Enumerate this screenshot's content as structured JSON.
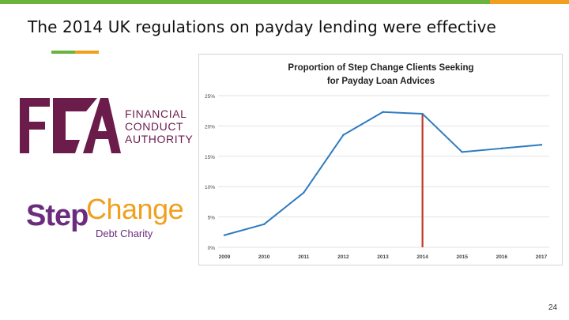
{
  "colors": {
    "accent_green": "#6bb33f",
    "accent_orange": "#f0a01e",
    "fca_purple": "#6b1c4b",
    "step_purple": "#6b2c7e",
    "step_orange": "#f0a01e",
    "line_blue": "#2e7bbf",
    "marker_red": "#c0392b"
  },
  "slide": {
    "title": "The 2014 UK regulations on payday lending were effective",
    "page_number": "24"
  },
  "logos": {
    "fca": {
      "mark": "FCA",
      "lines": [
        "FINANCIAL",
        "CONDUCT",
        "AUTHORITY"
      ]
    },
    "stepchange": {
      "step": "Step",
      "change": "Change",
      "subtitle": "Debt Charity"
    }
  },
  "chart_data": {
    "type": "line",
    "title": [
      "Proportion of Step Change Clients Seeking",
      "for Payday Loan Advices"
    ],
    "categories": [
      "2009",
      "2010",
      "2011",
      "2012",
      "2013",
      "2014",
      "2015",
      "2016",
      "2017"
    ],
    "y_ticks": [
      "0%",
      "5%",
      "10%",
      "15%",
      "20%",
      "25%"
    ],
    "ylim": [
      0,
      25
    ],
    "grid": true,
    "series": [
      {
        "values": [
          2.0,
          3.8,
          9.0,
          18.5,
          22.3,
          22.0,
          15.7,
          16.3,
          16.9
        ],
        "color": "#2e7bbf"
      }
    ],
    "marker": {
      "x": "2014",
      "color": "#c0392b"
    }
  }
}
